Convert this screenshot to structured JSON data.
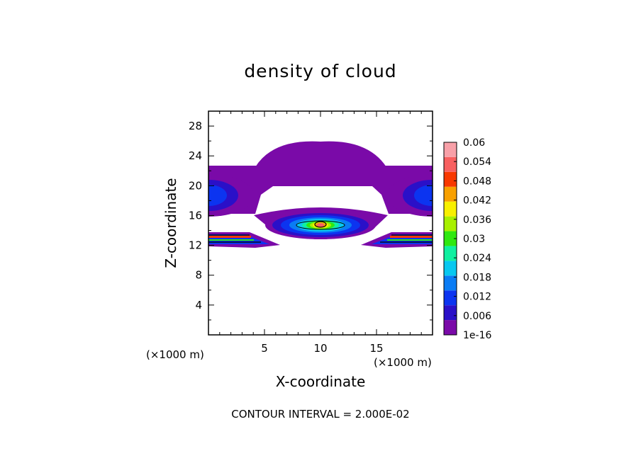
{
  "chart_data": {
    "type": "heatmap",
    "title": "density of cloud",
    "xlabel": "X-coordinate",
    "ylabel": "Z-coordinate",
    "x_unit_label": "(×1000 m)",
    "z_unit_label": "(×1000 m)",
    "footer": "CONTOUR INTERVAL = 2.000E-02",
    "xlim": [
      0,
      20
    ],
    "ylim": [
      0,
      30
    ],
    "x_ticks": [
      5,
      10,
      15
    ],
    "y_ticks": [
      4,
      8,
      12,
      16,
      20,
      24,
      28
    ],
    "colorbar": {
      "levels": [
        "1e-16",
        "0.006",
        "0.012",
        "0.018",
        "0.024",
        "0.03",
        "0.036",
        "0.042",
        "0.048",
        "0.054",
        "0.06"
      ],
      "colors": [
        "#7a0aa8",
        "#2a10c8",
        "#0c34f0",
        "#0a7cf4",
        "#08c8f0",
        "#10f0a0",
        "#30e810",
        "#a8f000",
        "#f8f000",
        "#f8a000",
        "#f83800",
        "#f86060",
        "#f8a0a8"
      ]
    }
  }
}
